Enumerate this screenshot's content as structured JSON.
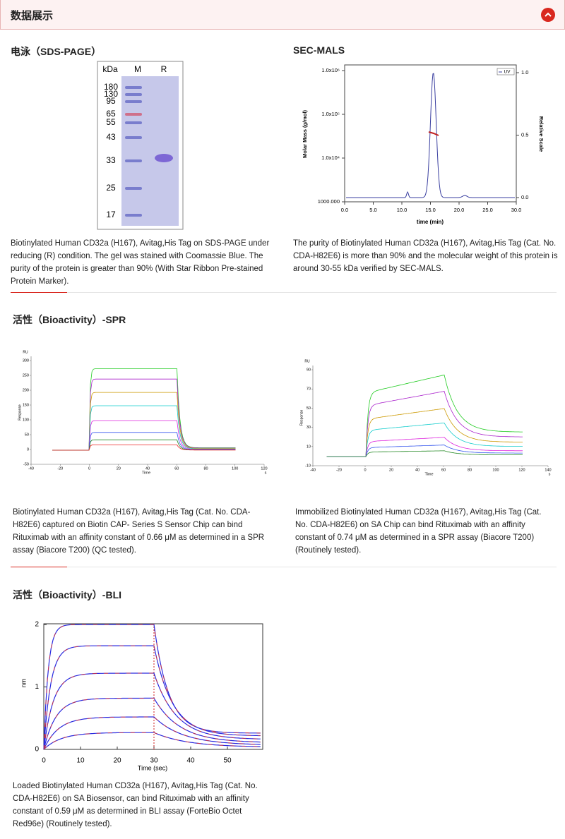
{
  "header": {
    "title": "数据展示"
  },
  "sds_page": {
    "title": "电泳（SDS-PAGE）",
    "gel": {
      "unit": "kDa",
      "lanes": [
        "M",
        "R"
      ],
      "markers": [
        "180",
        "130",
        "95",
        "65",
        "55",
        "43",
        "33",
        "25",
        "17"
      ]
    },
    "caption": "Biotinylated Human CD32a (H167), Avitag,His Tag on SDS-PAGE under reducing (R) condition. The gel was stained with Coomassie Blue. The purity of the protein is greater than 90% (With Star Ribbon Pre-stained Protein Marker)."
  },
  "sec_mals": {
    "title": "SEC-MALS",
    "y_label": "Molar Mass (g/mol)",
    "y2_label": "Relative Scale",
    "x_label": "time (min)",
    "legend": "UV",
    "yticks": [
      "1.0x10⁶",
      "1.0x10⁵",
      "1.0x10⁴",
      "1000.000"
    ],
    "y2ticks": [
      "1.0",
      "0.5",
      "0.0"
    ],
    "xticks": [
      "0.0",
      "5.0",
      "10.0",
      "15.0",
      "20.0",
      "25.0",
      "30.0"
    ],
    "caption": "The purity of Biotinylated Human CD32a (H167), Avitag,His Tag (Cat. No. CDA-H82E6) is more than 90% and the molecular weight of this protein is around 30-55 kDa verified by SEC-MALS."
  },
  "spr": {
    "title": "活性（Bioactivity）-SPR",
    "charts": [
      {
        "unit": "RU",
        "y_label": "Response",
        "x_label": "Time",
        "x_unit": "s",
        "yticks": [
          300,
          250,
          200,
          150,
          100,
          50,
          0,
          -50
        ],
        "xticks": [
          -40,
          -20,
          0,
          20,
          40,
          60,
          80,
          100,
          120
        ],
        "caption": "Biotinylated Human CD32a (H167), Avitag,His Tag (Cat. No. CDA-H82E6) captured on Biotin CAP- Series S Sensor Chip can bind Rituximab with an affinity constant of 0.66 μM as determined in a SPR assay (Biacore T200) (QC tested)."
      },
      {
        "unit": "RU",
        "y_label": "Response",
        "x_label": "Time",
        "x_unit": "s",
        "yticks": [
          90,
          70,
          50,
          30,
          10,
          -10
        ],
        "xticks": [
          -40,
          -20,
          0,
          20,
          40,
          60,
          80,
          100,
          120,
          140
        ],
        "caption": "Immobilized Biotinylated Human CD32a (H167), Avitag,His Tag (Cat. No. CDA-H82E6) on SA Chip can bind Rituximab with an affinity constant of 0.74 μM as determined in a SPR assay (Biacore T200) (Routinely tested)."
      }
    ]
  },
  "bli": {
    "title": "活性（Bioactivity）-BLI",
    "y_label": "nm",
    "x_label": "Time (sec)",
    "yticks": [
      0,
      1,
      2
    ],
    "xticks": [
      0,
      10,
      20,
      30,
      40,
      50
    ],
    "caption": "Loaded Biotinylated Human CD32a (H167), Avitag,His Tag (Cat. No. CDA-H82E6) on SA Biosensor, can bind Rituximab with an affinity constant of 0.59 μM as determined in BLI assay (ForteBio Octet Red96e) (Routinely tested)."
  }
}
